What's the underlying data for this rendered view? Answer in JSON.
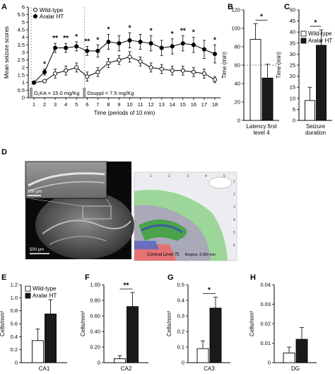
{
  "panels": {
    "A": "A",
    "B": "B",
    "C": "C",
    "D": "D",
    "E": "E",
    "F": "F",
    "G": "G",
    "H": "H"
  },
  "colors": {
    "wildtype_fill": "#ffffff",
    "aralar_fill": "#1a1a1a",
    "annotation_bar": "#999999"
  },
  "chart_data": [
    {
      "id": "A",
      "type": "line",
      "ylabel": "Mean seizure scores",
      "xlabel": "Time (periods of 10 min)",
      "ylim": [
        0,
        6
      ],
      "yticks": [
        "0",
        "0.5",
        "1",
        "1.5",
        "2",
        "2.5",
        "3",
        "3.5",
        "4",
        "4.5",
        "5",
        "5.5",
        "6"
      ],
      "x": [
        1,
        2,
        3,
        4,
        5,
        6,
        7,
        8,
        9,
        10,
        11,
        12,
        13,
        14,
        15,
        16,
        17,
        18
      ],
      "xticks": [
        "1",
        "2",
        "3",
        "4",
        "5",
        "6",
        "7",
        "8",
        "9",
        "10",
        "11",
        "12",
        "13",
        "14",
        "15",
        "16",
        "17",
        "18"
      ],
      "legend": [
        "Wild-type",
        "Aralar HT"
      ],
      "series": [
        {
          "name": "Wild-type",
          "marker": "open-circle",
          "values": [
            1.0,
            1.1,
            1.6,
            1.8,
            2.0,
            1.4,
            1.7,
            2.3,
            2.5,
            2.7,
            2.4,
            2.0,
            1.9,
            1.8,
            1.8,
            1.7,
            1.6,
            1.2
          ],
          "err": [
            0.05,
            0.1,
            0.3,
            0.3,
            0.3,
            0.3,
            0.3,
            0.3,
            0.3,
            0.35,
            0.3,
            0.3,
            0.3,
            0.3,
            0.3,
            0.3,
            0.3,
            0.2
          ]
        },
        {
          "name": "Aralar HT",
          "marker": "filled-circle",
          "values": [
            1.0,
            1.7,
            3.3,
            3.3,
            3.4,
            3.1,
            3.1,
            3.7,
            3.6,
            3.8,
            3.7,
            3.6,
            3.3,
            3.4,
            3.6,
            3.5,
            3.2,
            2.9
          ],
          "err": [
            0.05,
            0.2,
            0.3,
            0.3,
            0.3,
            0.3,
            0.4,
            0.5,
            0.5,
            0.5,
            0.5,
            0.5,
            0.5,
            0.5,
            0.5,
            0.5,
            0.6,
            0.6
          ]
        }
      ],
      "significance": [
        {
          "x": 2,
          "label": "*"
        },
        {
          "x": 3,
          "label": "**"
        },
        {
          "x": 4,
          "label": "**"
        },
        {
          "x": 5,
          "label": "*"
        },
        {
          "x": 6,
          "label": "**"
        },
        {
          "x": 7,
          "label": "*"
        },
        {
          "x": 8,
          "label": "*"
        },
        {
          "x": 10,
          "label": "*"
        },
        {
          "x": 12,
          "label": "*"
        },
        {
          "x": 14,
          "label": "*"
        },
        {
          "x": 15,
          "label": "**"
        },
        {
          "x": 16,
          "label": "*"
        },
        {
          "x": 18,
          "label": "*"
        }
      ],
      "dose_annotations": [
        {
          "x": 1,
          "text": "D₁KA = 15.0 mg/Kg"
        },
        {
          "x": 6,
          "text": "Dsuppl = 7.5 mg/Kg"
        }
      ]
    },
    {
      "id": "B",
      "type": "bar",
      "ylabel": "Time (min)",
      "ylim": [
        0,
        120
      ],
      "yticks": [
        "0",
        "20",
        "40",
        "60",
        "80",
        "100",
        "120"
      ],
      "categories": [
        "Latency first level 4"
      ],
      "category_lines": [
        "Latency first",
        "level 4"
      ],
      "series": [
        {
          "name": "Wild-type",
          "values": [
            88
          ],
          "err": [
            17
          ]
        },
        {
          "name": "Aralar HT",
          "values": [
            46
          ],
          "err": [
            15
          ]
        }
      ],
      "reference_line": 60,
      "significance": "*"
    },
    {
      "id": "C",
      "type": "bar",
      "ylabel": "Time (min)",
      "ylim": [
        0,
        50
      ],
      "yticks": [
        "0",
        "5",
        "10",
        "15",
        "20",
        "25",
        "30",
        "35",
        "40",
        "45",
        "50"
      ],
      "categories": [
        "Seizure duration"
      ],
      "category_lines": [
        "Seizure",
        "duration"
      ],
      "legend": [
        "Wild-type",
        "Aralar HT"
      ],
      "series": [
        {
          "name": "Wild-type",
          "values": [
            9
          ],
          "err": [
            6
          ]
        },
        {
          "name": "Aralar HT",
          "values": [
            34
          ],
          "err": [
            7
          ]
        }
      ],
      "significance": "*"
    },
    {
      "id": "E",
      "type": "bar",
      "ylabel": "Cells/mm²",
      "ylim": [
        0,
        1.2
      ],
      "yticks": [
        "0",
        "0.2",
        "0.4",
        "0.6",
        "0.8",
        "1.0",
        "1.2"
      ],
      "categories": [
        "CA1"
      ],
      "legend": [
        "Wild-type",
        "Aralar HT"
      ],
      "series": [
        {
          "name": "Wild-type",
          "values": [
            0.34
          ],
          "err": [
            0.18
          ]
        },
        {
          "name": "Aralar HT",
          "values": [
            0.75
          ],
          "err": [
            0.22
          ]
        }
      ]
    },
    {
      "id": "F",
      "type": "bar",
      "ylabel": "Cells/mm²",
      "ylim": [
        0,
        1.0
      ],
      "yticks": [
        "0",
        "0.20",
        "0.40",
        "0.60",
        "0.80",
        "1.00"
      ],
      "categories": [
        "CA2"
      ],
      "series": [
        {
          "name": "Wild-type",
          "values": [
            0.05
          ],
          "err": [
            0.04
          ]
        },
        {
          "name": "Aralar HT",
          "values": [
            0.72
          ],
          "err": [
            0.18
          ]
        }
      ],
      "significance": "**"
    },
    {
      "id": "G",
      "type": "bar",
      "ylabel": "Cells/mm²",
      "ylim": [
        0,
        0.5
      ],
      "yticks": [
        "0",
        "0.1",
        "0.2",
        "0.3",
        "0.4",
        "0.5"
      ],
      "categories": [
        "CA3"
      ],
      "series": [
        {
          "name": "Wild-type",
          "values": [
            0.09
          ],
          "err": [
            0.05
          ]
        },
        {
          "name": "Aralar HT",
          "values": [
            0.35
          ],
          "err": [
            0.07
          ]
        }
      ],
      "significance": "*"
    },
    {
      "id": "H",
      "type": "bar",
      "ylabel": "Cells/mm²",
      "ylim": [
        0,
        0.04
      ],
      "yticks": [
        "0",
        "0.01",
        "0.02",
        "0.03",
        "0.04"
      ],
      "categories": [
        "DG"
      ],
      "series": [
        {
          "name": "Wild-type",
          "values": [
            0.005
          ],
          "err": [
            0.003
          ]
        },
        {
          "name": "Aralar HT",
          "values": [
            0.012
          ],
          "err": [
            0.006
          ]
        }
      ]
    }
  ],
  "panelD": {
    "scale_bar_inset": "100 μm",
    "scale_bar_main": "500 μm",
    "atlas_label": "Coronal Level 75",
    "atlas_bregma": "Bregma -2.000 mm",
    "atlas_top_ticks": [
      "1",
      "2",
      "3",
      "4",
      "5"
    ],
    "atlas_side_ticks": [
      "1",
      "2",
      "3",
      "4",
      "5",
      "6"
    ]
  }
}
